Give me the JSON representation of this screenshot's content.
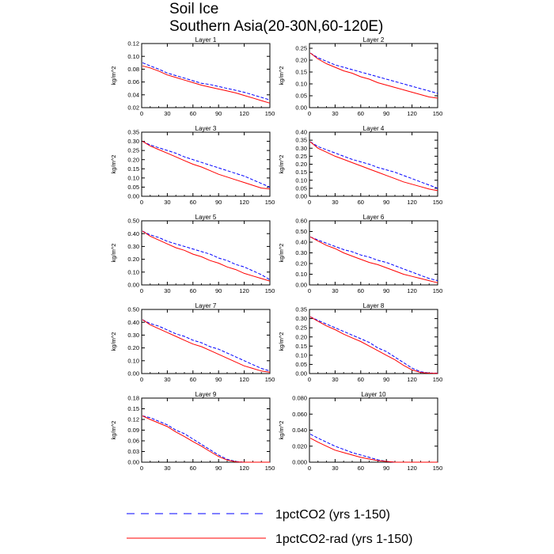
{
  "figure": {
    "title_line1": "Soil Ice",
    "title_line2": "Southern Asia(20-30N,60-120E)"
  },
  "legend": [
    {
      "label": "1pctCO2 (yrs 1-150)",
      "color": "#0000ff",
      "dash": "dashed"
    },
    {
      "label": "1pctCO2-rad (yrs 1-150)",
      "color": "#ff0000",
      "dash": "solid"
    }
  ],
  "chart_data": [
    {
      "type": "line",
      "title": "Layer 1",
      "ylabel": "kg/m^2",
      "xlim": [
        0,
        150
      ],
      "ylim": [
        0.02,
        0.12
      ],
      "xticks": [
        0,
        30,
        60,
        90,
        120,
        150
      ],
      "yticks": [
        0.02,
        0.04,
        0.06,
        0.08,
        0.1,
        0.12
      ],
      "ytick_labels": [
        "0.02",
        "0.04",
        "0.06",
        "0.08",
        "0.10",
        "0.12"
      ],
      "x": [
        1,
        10,
        20,
        30,
        40,
        50,
        60,
        70,
        80,
        90,
        100,
        110,
        120,
        130,
        140,
        150
      ],
      "series": [
        {
          "name": "1pctCO2 (yrs 1-150)",
          "values": [
            0.09,
            0.085,
            0.08,
            0.074,
            0.07,
            0.066,
            0.062,
            0.058,
            0.056,
            0.053,
            0.05,
            0.047,
            0.044,
            0.04,
            0.036,
            0.032
          ]
        },
        {
          "name": "1pctCO2-rad (yrs 1-150)",
          "values": [
            0.085,
            0.082,
            0.077,
            0.071,
            0.067,
            0.063,
            0.059,
            0.055,
            0.052,
            0.049,
            0.046,
            0.043,
            0.039,
            0.035,
            0.031,
            0.027
          ]
        }
      ]
    },
    {
      "type": "line",
      "title": "Layer 2",
      "ylabel": "kg/m^2",
      "xlim": [
        0,
        150
      ],
      "ylim": [
        0,
        0.27
      ],
      "xticks": [
        0,
        30,
        60,
        90,
        120,
        150
      ],
      "yticks": [
        0,
        0.05,
        0.1,
        0.15,
        0.2,
        0.25
      ],
      "ytick_labels": [
        "0.00",
        "0.05",
        "0.10",
        "0.15",
        "0.20",
        "0.25"
      ],
      "x": [
        1,
        10,
        20,
        30,
        40,
        50,
        60,
        70,
        80,
        90,
        100,
        110,
        120,
        130,
        140,
        150
      ],
      "series": [
        {
          "name": "1pctCO2 (yrs 1-150)",
          "values": [
            0.23,
            0.21,
            0.195,
            0.18,
            0.17,
            0.16,
            0.15,
            0.14,
            0.13,
            0.12,
            0.11,
            0.1,
            0.09,
            0.08,
            0.07,
            0.06
          ]
        },
        {
          "name": "1pctCO2-rad (yrs 1-150)",
          "values": [
            0.23,
            0.205,
            0.185,
            0.17,
            0.155,
            0.145,
            0.13,
            0.12,
            0.105,
            0.095,
            0.085,
            0.075,
            0.065,
            0.055,
            0.045,
            0.04
          ]
        }
      ]
    },
    {
      "type": "line",
      "title": "Layer 3",
      "ylabel": "kg/m^2",
      "xlim": [
        0,
        150
      ],
      "ylim": [
        0,
        0.35
      ],
      "xticks": [
        0,
        30,
        60,
        90,
        120,
        150
      ],
      "yticks": [
        0,
        0.05,
        0.1,
        0.15,
        0.2,
        0.25,
        0.3,
        0.35
      ],
      "ytick_labels": [
        "0.00",
        "0.05",
        "0.10",
        "0.15",
        "0.20",
        "0.25",
        "0.30",
        "0.35"
      ],
      "x": [
        1,
        10,
        20,
        30,
        40,
        50,
        60,
        70,
        80,
        90,
        100,
        110,
        120,
        130,
        140,
        150
      ],
      "series": [
        {
          "name": "1pctCO2 (yrs 1-150)",
          "values": [
            0.3,
            0.28,
            0.265,
            0.25,
            0.235,
            0.215,
            0.2,
            0.185,
            0.17,
            0.155,
            0.14,
            0.125,
            0.11,
            0.09,
            0.07,
            0.05
          ]
        },
        {
          "name": "1pctCO2-rad (yrs 1-150)",
          "values": [
            0.3,
            0.275,
            0.255,
            0.235,
            0.215,
            0.195,
            0.175,
            0.16,
            0.14,
            0.12,
            0.105,
            0.09,
            0.075,
            0.06,
            0.045,
            0.04
          ]
        }
      ]
    },
    {
      "type": "line",
      "title": "Layer 4",
      "ylabel": "kg/m^2",
      "xlim": [
        0,
        150
      ],
      "ylim": [
        0,
        0.4
      ],
      "xticks": [
        0,
        30,
        60,
        90,
        120,
        150
      ],
      "yticks": [
        0,
        0.05,
        0.1,
        0.15,
        0.2,
        0.25,
        0.3,
        0.35,
        0.4
      ],
      "ytick_labels": [
        "0.00",
        "0.05",
        "0.10",
        "0.15",
        "0.20",
        "0.25",
        "0.30",
        "0.35",
        "0.40"
      ],
      "x": [
        1,
        10,
        20,
        30,
        40,
        50,
        60,
        70,
        80,
        90,
        100,
        110,
        120,
        130,
        140,
        150
      ],
      "series": [
        {
          "name": "1pctCO2 (yrs 1-150)",
          "values": [
            0.34,
            0.31,
            0.29,
            0.27,
            0.25,
            0.23,
            0.215,
            0.2,
            0.18,
            0.165,
            0.15,
            0.13,
            0.11,
            0.09,
            0.07,
            0.05
          ]
        },
        {
          "name": "1pctCO2-rad (yrs 1-150)",
          "values": [
            0.34,
            0.3,
            0.275,
            0.25,
            0.23,
            0.21,
            0.19,
            0.17,
            0.15,
            0.13,
            0.11,
            0.09,
            0.075,
            0.06,
            0.045,
            0.035
          ]
        }
      ]
    },
    {
      "type": "line",
      "title": "Layer 5",
      "ylabel": "kg/m^2",
      "xlim": [
        0,
        150
      ],
      "ylim": [
        0,
        0.5
      ],
      "xticks": [
        0,
        30,
        60,
        90,
        120,
        150
      ],
      "yticks": [
        0,
        0.1,
        0.2,
        0.3,
        0.4,
        0.5
      ],
      "ytick_labels": [
        "0.00",
        "0.10",
        "0.20",
        "0.30",
        "0.40",
        "0.50"
      ],
      "x": [
        1,
        10,
        20,
        30,
        40,
        50,
        60,
        70,
        80,
        90,
        100,
        110,
        120,
        130,
        140,
        150
      ],
      "series": [
        {
          "name": "1pctCO2 (yrs 1-150)",
          "values": [
            0.42,
            0.39,
            0.37,
            0.34,
            0.32,
            0.3,
            0.28,
            0.26,
            0.24,
            0.21,
            0.19,
            0.16,
            0.14,
            0.11,
            0.08,
            0.04
          ]
        },
        {
          "name": "1pctCO2-rad (yrs 1-150)",
          "values": [
            0.42,
            0.38,
            0.35,
            0.32,
            0.29,
            0.27,
            0.24,
            0.22,
            0.19,
            0.17,
            0.14,
            0.12,
            0.09,
            0.07,
            0.05,
            0.03
          ]
        }
      ]
    },
    {
      "type": "line",
      "title": "Layer 6",
      "ylabel": "kg/m^2",
      "xlim": [
        0,
        150
      ],
      "ylim": [
        0,
        0.6
      ],
      "xticks": [
        0,
        30,
        60,
        90,
        120,
        150
      ],
      "yticks": [
        0,
        0.1,
        0.2,
        0.3,
        0.4,
        0.5,
        0.6
      ],
      "ytick_labels": [
        "0.00",
        "0.10",
        "0.20",
        "0.30",
        "0.40",
        "0.50",
        "0.60"
      ],
      "x": [
        1,
        10,
        20,
        30,
        40,
        50,
        60,
        70,
        80,
        90,
        100,
        110,
        120,
        130,
        140,
        150
      ],
      "series": [
        {
          "name": "1pctCO2 (yrs 1-150)",
          "values": [
            0.45,
            0.42,
            0.39,
            0.36,
            0.33,
            0.31,
            0.28,
            0.26,
            0.23,
            0.21,
            0.18,
            0.15,
            0.12,
            0.09,
            0.06,
            0.04
          ]
        },
        {
          "name": "1pctCO2-rad (yrs 1-150)",
          "values": [
            0.45,
            0.41,
            0.37,
            0.34,
            0.3,
            0.27,
            0.24,
            0.21,
            0.19,
            0.16,
            0.13,
            0.1,
            0.08,
            0.06,
            0.04,
            0.02
          ]
        }
      ]
    },
    {
      "type": "line",
      "title": "Layer 7",
      "ylabel": "kg/m^2",
      "xlim": [
        0,
        150
      ],
      "ylim": [
        0,
        0.5
      ],
      "xticks": [
        0,
        30,
        60,
        90,
        120,
        150
      ],
      "yticks": [
        0,
        0.1,
        0.2,
        0.3,
        0.4,
        0.5
      ],
      "ytick_labels": [
        "0.00",
        "0.10",
        "0.20",
        "0.30",
        "0.40",
        "0.50"
      ],
      "x": [
        1,
        10,
        20,
        30,
        40,
        50,
        60,
        70,
        80,
        90,
        100,
        110,
        120,
        130,
        140,
        150
      ],
      "series": [
        {
          "name": "1pctCO2 (yrs 1-150)",
          "values": [
            0.42,
            0.39,
            0.37,
            0.34,
            0.31,
            0.29,
            0.26,
            0.24,
            0.21,
            0.19,
            0.16,
            0.13,
            0.1,
            0.07,
            0.04,
            0.02
          ]
        },
        {
          "name": "1pctCO2-rad (yrs 1-150)",
          "values": [
            0.42,
            0.38,
            0.35,
            0.32,
            0.29,
            0.26,
            0.23,
            0.21,
            0.18,
            0.15,
            0.12,
            0.09,
            0.06,
            0.04,
            0.02,
            0.01
          ]
        }
      ]
    },
    {
      "type": "line",
      "title": "Layer 8",
      "ylabel": "kg/m^2",
      "xlim": [
        0,
        150
      ],
      "ylim": [
        0,
        0.35
      ],
      "xticks": [
        0,
        30,
        60,
        90,
        120,
        150
      ],
      "yticks": [
        0,
        0.05,
        0.1,
        0.15,
        0.2,
        0.25,
        0.3,
        0.35
      ],
      "ytick_labels": [
        "0.00",
        "0.05",
        "0.10",
        "0.15",
        "0.20",
        "0.25",
        "0.30",
        "0.35"
      ],
      "x": [
        1,
        10,
        20,
        30,
        40,
        50,
        60,
        70,
        80,
        90,
        100,
        110,
        120,
        130,
        140,
        150
      ],
      "series": [
        {
          "name": "1pctCO2 (yrs 1-150)",
          "values": [
            0.31,
            0.29,
            0.27,
            0.25,
            0.23,
            0.21,
            0.19,
            0.17,
            0.14,
            0.12,
            0.09,
            0.06,
            0.03,
            0.01,
            0.003,
            0.002
          ]
        },
        {
          "name": "1pctCO2-rad (yrs 1-150)",
          "values": [
            0.31,
            0.285,
            0.26,
            0.24,
            0.215,
            0.195,
            0.175,
            0.15,
            0.125,
            0.1,
            0.075,
            0.045,
            0.02,
            0.006,
            0.002,
            0.001
          ]
        }
      ]
    },
    {
      "type": "line",
      "title": "Layer 9",
      "ylabel": "kg/m^2",
      "xlim": [
        0,
        150
      ],
      "ylim": [
        0,
        0.18
      ],
      "xticks": [
        0,
        30,
        60,
        90,
        120,
        150
      ],
      "yticks": [
        0,
        0.03,
        0.06,
        0.09,
        0.12,
        0.15,
        0.18
      ],
      "ytick_labels": [
        "0.00",
        "0.03",
        "0.06",
        "0.09",
        "0.12",
        "0.15",
        "0.18"
      ],
      "x": [
        1,
        10,
        20,
        30,
        40,
        50,
        60,
        70,
        80,
        90,
        100,
        110,
        120,
        130,
        140,
        150
      ],
      "series": [
        {
          "name": "1pctCO2 (yrs 1-150)",
          "values": [
            0.13,
            0.125,
            0.115,
            0.105,
            0.09,
            0.08,
            0.065,
            0.05,
            0.035,
            0.02,
            0.008,
            0.002,
            0,
            0,
            0,
            0
          ]
        },
        {
          "name": "1pctCO2-rad (yrs 1-150)",
          "values": [
            0.13,
            0.12,
            0.11,
            0.1,
            0.085,
            0.072,
            0.058,
            0.045,
            0.03,
            0.016,
            0.006,
            0.001,
            0,
            0,
            0,
            0
          ]
        }
      ]
    },
    {
      "type": "line",
      "title": "Layer 10",
      "ylabel": "kg/m^2",
      "xlim": [
        0,
        150
      ],
      "ylim": [
        0,
        0.08
      ],
      "xticks": [
        0,
        30,
        60,
        90,
        120,
        150
      ],
      "yticks": [
        0,
        0.02,
        0.04,
        0.06,
        0.08
      ],
      "ytick_labels": [
        "0.000",
        "0.020",
        "0.040",
        "0.060",
        "0.080"
      ],
      "x": [
        1,
        10,
        20,
        30,
        40,
        50,
        60,
        70,
        80,
        90,
        100,
        110,
        120,
        130,
        140,
        150
      ],
      "series": [
        {
          "name": "1pctCO2 (yrs 1-150)",
          "values": [
            0.035,
            0.03,
            0.025,
            0.02,
            0.016,
            0.012,
            0.009,
            0.006,
            0.003,
            0.001,
            0,
            0,
            0,
            0,
            0,
            0
          ]
        },
        {
          "name": "1pctCO2-rad (yrs 1-150)",
          "values": [
            0.03,
            0.025,
            0.02,
            0.015,
            0.012,
            0.009,
            0.006,
            0.004,
            0.002,
            0.001,
            0,
            0,
            0,
            0,
            0,
            0
          ]
        }
      ]
    }
  ]
}
